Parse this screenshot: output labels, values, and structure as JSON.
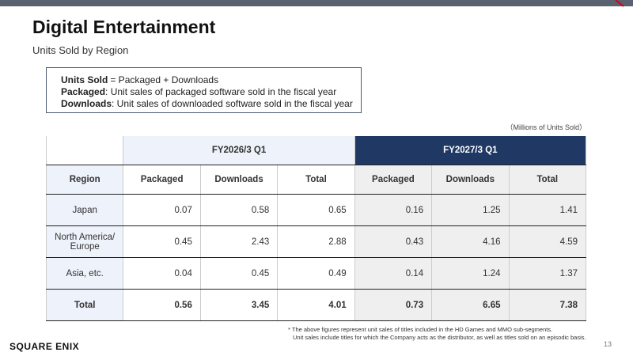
{
  "header": {
    "title": "Digital Entertainment",
    "subtitle": "Units Sold by Region"
  },
  "definitions": [
    {
      "term": "Units Sold",
      "text": "= Packaged + Downloads"
    },
    {
      "term": "Packaged",
      "text": ": Unit sales of packaged software sold in the fiscal year"
    },
    {
      "term": "Downloads",
      "text": ": Unit sales of downloaded software sold in the fiscal year"
    }
  ],
  "unit_note": "（Millions of Units Sold）",
  "table": {
    "periods": [
      "FY2026/3 Q1",
      "FY2027/3 Q1"
    ],
    "columns": [
      "Region",
      "Packaged",
      "Downloads",
      "Total",
      "Packaged",
      "Downloads",
      "Total"
    ],
    "rows": [
      [
        "Japan",
        0.07,
        0.58,
        0.65,
        0.16,
        1.25,
        1.41
      ],
      [
        "North America/ Europe",
        0.45,
        2.43,
        2.88,
        0.43,
        4.16,
        4.59
      ],
      [
        "Asia, etc.",
        0.04,
        0.45,
        0.49,
        0.14,
        1.24,
        1.37
      ],
      [
        "Total",
        0.56,
        3.45,
        4.01,
        0.73,
        6.65,
        7.38
      ]
    ]
  },
  "footnotes": [
    "* The above figures represent unit sales of titles included in the HD Games and MMO sub-segments.",
    "Unit sales include titles for which the Company acts as the distributor, as well as titles sold on an episodic basis."
  ],
  "footer": {
    "logo": "SQUARE ENIX",
    "page_number": "13"
  }
}
